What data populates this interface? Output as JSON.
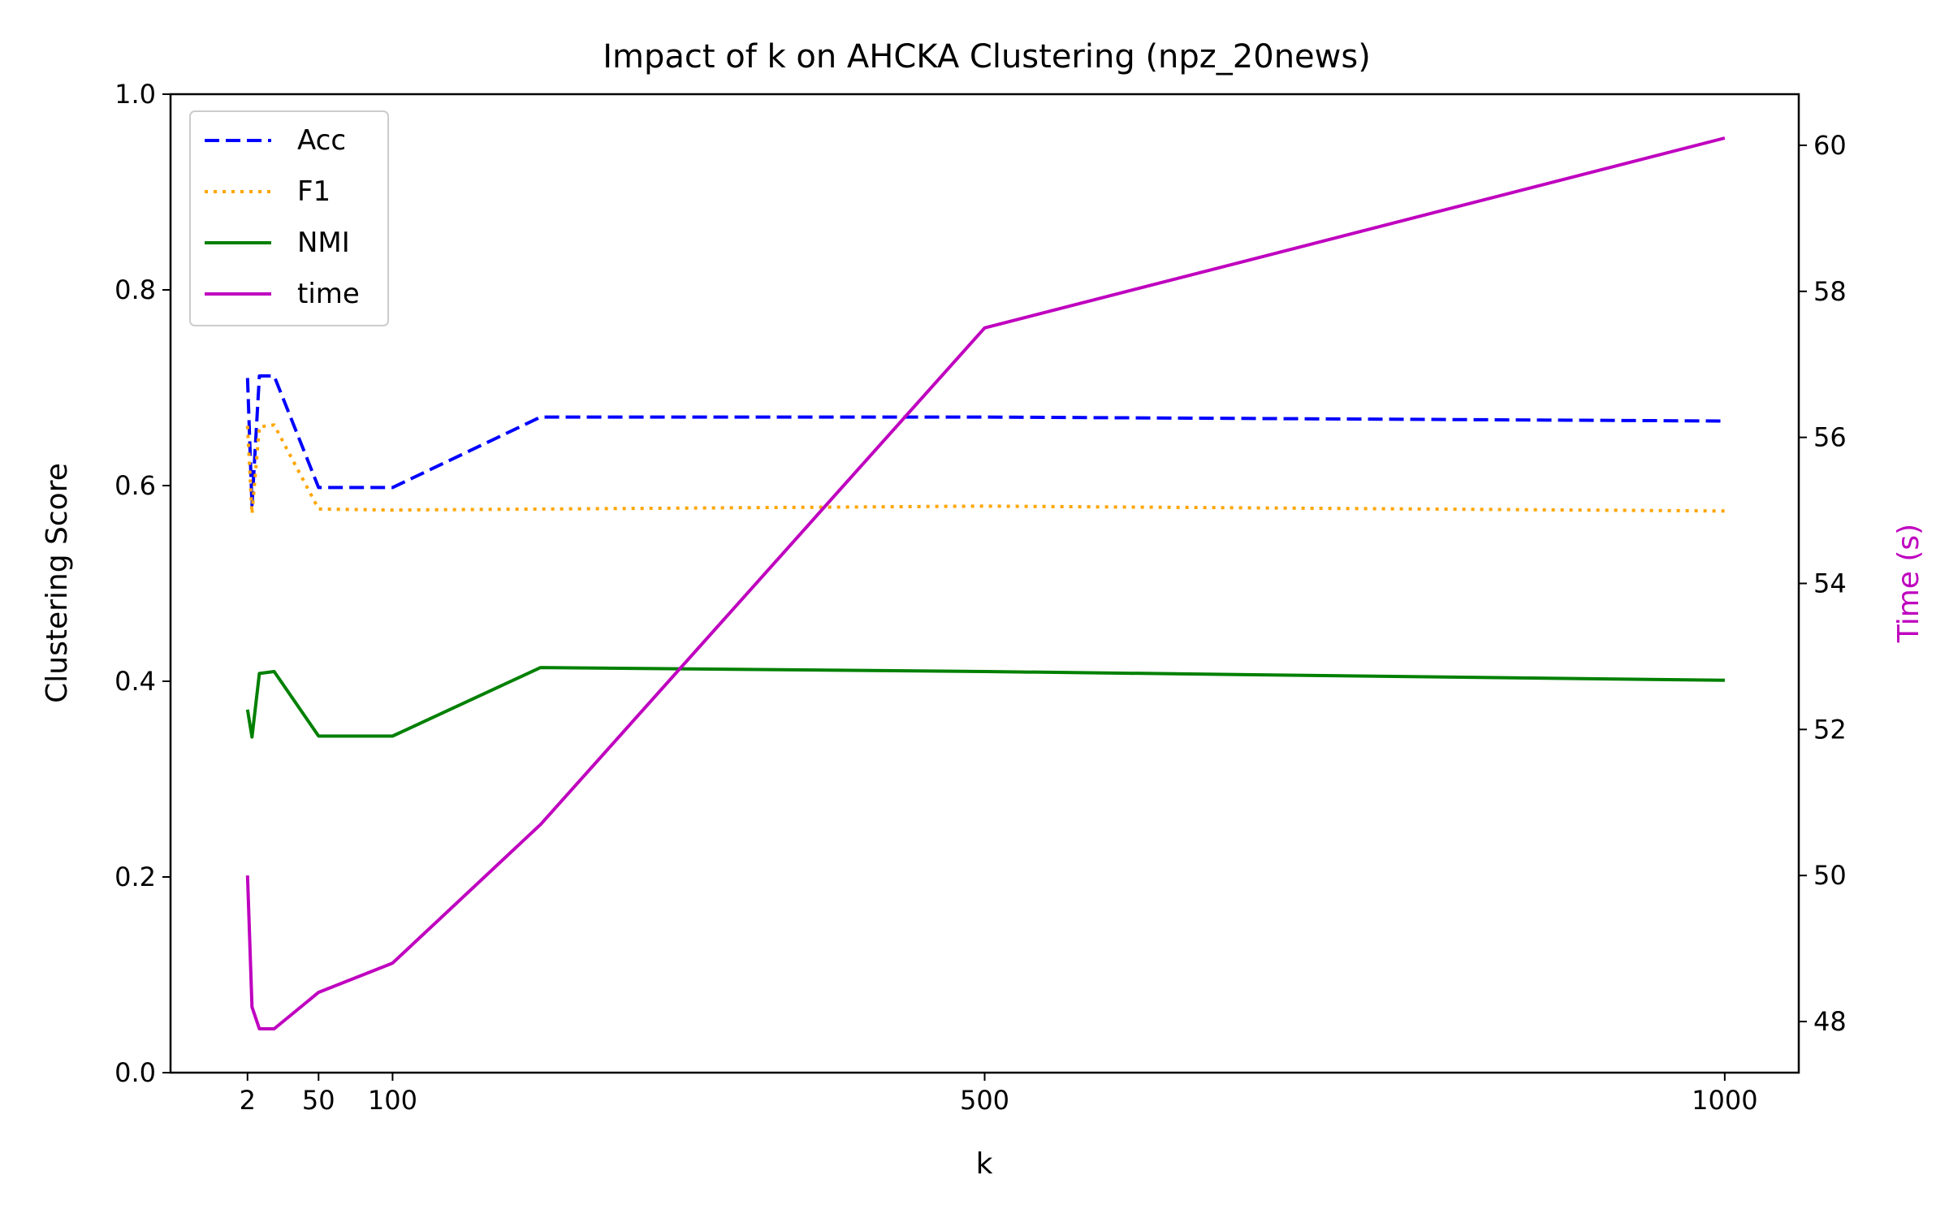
{
  "chart_data": {
    "type": "line",
    "title": "Impact of k on AHCKA Clustering (npz_20news)",
    "xlabel": "k",
    "ylabel": "Clustering Score",
    "y2label": "Time (s)",
    "xlim": [
      -50,
      1050
    ],
    "ylim": [
      0,
      1
    ],
    "y2lim": [
      47.3,
      60.7
    ],
    "xticks": [
      2,
      50,
      100,
      500,
      1000
    ],
    "yticks": [
      "0.0",
      "0.2",
      "0.4",
      "0.6",
      "0.8",
      "1.0"
    ],
    "y2ticks": [
      "48",
      "50",
      "52",
      "54",
      "56",
      "58",
      "60"
    ],
    "grid": false,
    "legend_position": "upper-left",
    "series": [
      {
        "name": "Acc",
        "axis": "left",
        "color": "#0000ff",
        "style": "dashed",
        "x": [
          2,
          5,
          10,
          20,
          50,
          100,
          200,
          500,
          1000
        ],
        "y": [
          0.71,
          0.58,
          0.712,
          0.712,
          0.598,
          0.598,
          0.67,
          0.67,
          0.666
        ]
      },
      {
        "name": "F1",
        "axis": "left",
        "color": "#ffa500",
        "style": "dotted",
        "x": [
          2,
          5,
          10,
          20,
          50,
          100,
          200,
          500,
          1000
        ],
        "y": [
          0.661,
          0.571,
          0.66,
          0.662,
          0.576,
          0.575,
          0.576,
          0.579,
          0.574
        ]
      },
      {
        "name": "NMI",
        "axis": "left",
        "color": "#008000",
        "style": "solid",
        "x": [
          2,
          5,
          10,
          20,
          50,
          100,
          200,
          500,
          1000
        ],
        "y": [
          0.371,
          0.343,
          0.408,
          0.41,
          0.344,
          0.344,
          0.414,
          0.41,
          0.401
        ]
      },
      {
        "name": "time",
        "axis": "right",
        "color": "#bf00bf",
        "style": "solid",
        "x": [
          2,
          5,
          10,
          20,
          50,
          100,
          200,
          500,
          1000
        ],
        "y": [
          50.0,
          48.2,
          47.9,
          47.9,
          48.4,
          48.8,
          50.7,
          57.5,
          60.1
        ]
      }
    ]
  }
}
